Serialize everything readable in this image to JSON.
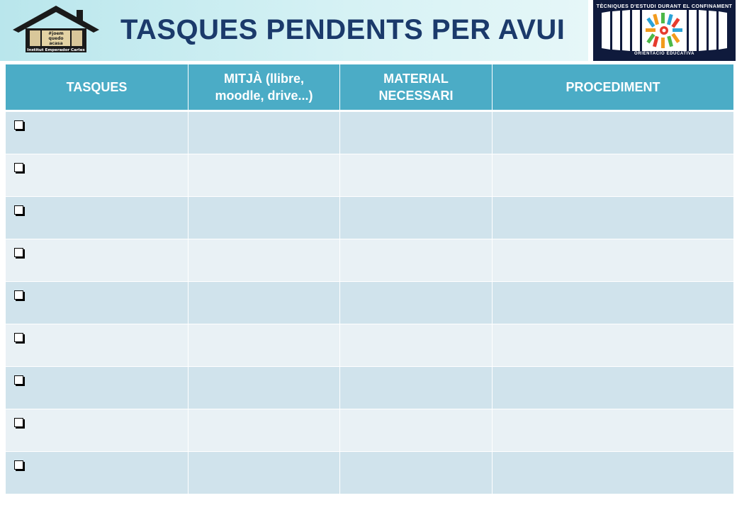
{
  "page": {
    "title": "TASQUES PENDENTS PER AVUI"
  },
  "logos": {
    "left": {
      "line1": "#joem",
      "line2": "quedo",
      "line3": "acasa",
      "caption": "Institut Emperador Carles"
    },
    "right": {
      "top_text": "TÈCNIQUES D'ESTUDI DURANT EL CONFINAMENT",
      "bottom_text": "ORIENTACIÓ EDUCATIVA"
    }
  },
  "table": {
    "headers": [
      {
        "line1": "TASQUES",
        "line2": ""
      },
      {
        "line1": "MITJÀ (llibre,",
        "line2": "moodle, drive...)"
      },
      {
        "line1": "MATERIAL",
        "line2": "NECESSARI"
      },
      {
        "line1": "PROCEDIMENT",
        "line2": ""
      }
    ],
    "rows": [
      {
        "task": "",
        "medium": "",
        "material": "",
        "procedure": "",
        "checked": false
      },
      {
        "task": "",
        "medium": "",
        "material": "",
        "procedure": "",
        "checked": false
      },
      {
        "task": "",
        "medium": "",
        "material": "",
        "procedure": "",
        "checked": false
      },
      {
        "task": "",
        "medium": "",
        "material": "",
        "procedure": "",
        "checked": false
      },
      {
        "task": "",
        "medium": "",
        "material": "",
        "procedure": "",
        "checked": false
      },
      {
        "task": "",
        "medium": "",
        "material": "",
        "procedure": "",
        "checked": false
      },
      {
        "task": "",
        "medium": "",
        "material": "",
        "procedure": "",
        "checked": false
      },
      {
        "task": "",
        "medium": "",
        "material": "",
        "procedure": "",
        "checked": false
      },
      {
        "task": "",
        "medium": "",
        "material": "",
        "procedure": "",
        "checked": false
      }
    ]
  },
  "colors": {
    "header_bg": "#4bacc6",
    "row_odd": "#d0e3ec",
    "row_even": "#e9f1f5",
    "title": "#1b3a6b"
  }
}
